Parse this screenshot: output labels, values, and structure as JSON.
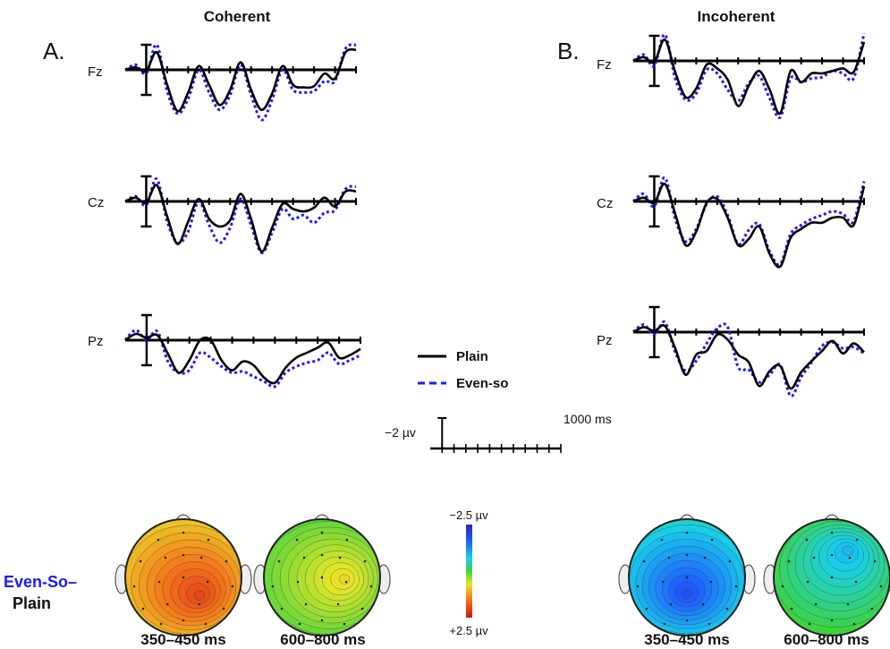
{
  "colors": {
    "plain": "#000000",
    "even_so": "#1a1aff",
    "axis": "#000000"
  },
  "panels": [
    {
      "id": "A",
      "letter": "A.",
      "title": "Coherent"
    },
    {
      "id": "B",
      "letter": "B.",
      "title": "Incoherent"
    }
  ],
  "electrodes": [
    "Fz",
    "Cz",
    "Pz"
  ],
  "legend": {
    "plain": "Plain",
    "even_so": "Even-so"
  },
  "scale_bar": {
    "amplitude": "−2 µv",
    "time": "1000 ms"
  },
  "difference_label": {
    "line1": "Even-So–",
    "line2": "Plain"
  },
  "colorbar": {
    "top": "−2.5 µv",
    "bottom": "+2.5 µv"
  },
  "time_windows": [
    "350–450 ms",
    "600–800 ms",
    "350–450 ms",
    "600–800 ms"
  ],
  "topomap_icons": [
    "head-topomap-icon",
    "head-topomap-icon",
    "head-topomap-icon",
    "head-topomap-icon"
  ],
  "chart_data": {
    "type": "line",
    "axis": {
      "x_range_ms": [
        -100,
        1000
      ],
      "x_tick_step_ms": 100,
      "y_scale_note": "negative up",
      "y_units": "µv"
    },
    "x_ms": [
      -100,
      -50,
      0,
      50,
      100,
      150,
      200,
      250,
      300,
      350,
      400,
      450,
      500,
      550,
      600,
      650,
      700,
      750,
      800,
      850,
      900,
      950,
      1000
    ],
    "waves": {
      "coherent": {
        "Fz": {
          "plain": [
            0,
            0.2,
            -0.1,
            1.4,
            -1.2,
            -3.3,
            -1.8,
            0.3,
            -1.2,
            -2.8,
            -1.6,
            0.6,
            -1.6,
            -3.2,
            -1.9,
            0.3,
            -1.2,
            -1.4,
            -1.3,
            -0.3,
            -0.7,
            1.4,
            1.6
          ],
          "even_so": [
            0,
            0.4,
            -0.3,
            2.0,
            -1.7,
            -3.5,
            -2.3,
            0.0,
            -1.8,
            -3.2,
            -2.0,
            0.4,
            -2.0,
            -4.0,
            -2.4,
            0.0,
            -1.6,
            -1.8,
            -1.7,
            -0.9,
            -0.9,
            1.7,
            2.0
          ]
        },
        "Cz": {
          "plain": [
            0,
            0.3,
            -0.1,
            1.3,
            -1.2,
            -3.4,
            -1.6,
            0.2,
            -1.4,
            -2.0,
            -1.5,
            0.6,
            -1.4,
            -4.0,
            -2.1,
            -0.2,
            -0.6,
            -0.8,
            -0.5,
            0.3,
            -0.4,
            0.8,
            0.8
          ],
          "even_so": [
            0,
            0.4,
            -0.3,
            1.8,
            -1.6,
            -3.3,
            -2.4,
            0.0,
            -1.9,
            -3.3,
            -2.1,
            0.2,
            -1.9,
            -4.1,
            -2.5,
            -0.6,
            -1.4,
            -1.1,
            -1.7,
            -0.9,
            -0.7,
            1.0,
            1.2
          ]
        },
        "Pz": {
          "plain": [
            0,
            0.5,
            0.2,
            0.4,
            -1.1,
            -2.6,
            -1.6,
            0.0,
            0.0,
            -1.6,
            -2.4,
            -1.7,
            -2.0,
            -3.0,
            -3.4,
            -2.2,
            -1.4,
            -1.0,
            -0.6,
            -0.2,
            -1.4,
            -1.2,
            -0.7
          ],
          "even_so": [
            0,
            0.8,
            0.0,
            0.7,
            -1.7,
            -2.6,
            -2.4,
            -1.0,
            -1.4,
            -2.1,
            -2.6,
            -2.5,
            -2.9,
            -3.3,
            -3.7,
            -2.6,
            -2.1,
            -1.8,
            -1.6,
            -1.0,
            -1.9,
            -1.6,
            -1.2
          ]
        }
      },
      "incoherent": {
        "Fz": {
          "plain": [
            0,
            0.3,
            -0.1,
            1.7,
            -0.9,
            -2.9,
            -2.2,
            -0.3,
            -0.6,
            -1.5,
            -3.6,
            -2.0,
            -0.8,
            -2.3,
            -4.2,
            -0.8,
            -1.7,
            -1.0,
            -1.0,
            -0.8,
            -0.6,
            -0.9,
            1.5
          ],
          "even_so": [
            0,
            0.5,
            -0.4,
            2.1,
            -1.4,
            -3.1,
            -2.6,
            -0.7,
            -1.0,
            -2.3,
            -3.2,
            -1.8,
            -1.2,
            -3.0,
            -4.5,
            -1.4,
            -1.7,
            -1.4,
            -1.3,
            -0.8,
            -1.0,
            -1.4,
            2.2
          ]
        },
        "Cz": {
          "plain": [
            0,
            0.3,
            -0.1,
            1.4,
            -1.0,
            -3.5,
            -2.4,
            -0.1,
            0.2,
            -1.3,
            -3.5,
            -3.0,
            -2.0,
            -4.2,
            -5.2,
            -2.9,
            -2.2,
            -1.7,
            -1.7,
            -1.3,
            -1.3,
            -1.9,
            1.2
          ],
          "even_so": [
            0,
            0.6,
            -0.4,
            1.9,
            -1.4,
            -3.2,
            -2.2,
            -0.2,
            0.4,
            -1.1,
            -3.4,
            -2.3,
            -1.8,
            -4.0,
            -5.0,
            -2.6,
            -1.9,
            -1.4,
            -1.1,
            -0.8,
            -1.0,
            -1.6,
            1.6
          ]
        },
        "Pz": {
          "plain": [
            0,
            0.4,
            0.1,
            0.5,
            -1.3,
            -3.4,
            -1.8,
            -1.5,
            -0.2,
            -0.6,
            -1.8,
            -2.4,
            -4.3,
            -3.1,
            -2.7,
            -4.5,
            -3.2,
            -2.3,
            -1.5,
            -0.7,
            -1.7,
            -0.9,
            -1.6
          ],
          "even_so": [
            0,
            0.6,
            -0.2,
            0.8,
            -1.6,
            -3.1,
            -2.3,
            -0.9,
            0.3,
            0.4,
            -2.8,
            -3.0,
            -4.0,
            -3.4,
            -2.6,
            -5.1,
            -3.6,
            -2.4,
            -1.1,
            -0.8,
            -1.3,
            -1.2,
            -1.7
          ]
        }
      }
    },
    "topomaps": [
      {
        "panel": "coherent",
        "window": "350–450 ms",
        "mean_uv": 1.3,
        "center_uv": 2.0,
        "center_pos": "central-posterior right"
      },
      {
        "panel": "coherent",
        "window": "600–800 ms",
        "mean_uv": 0.35,
        "center_uv": 0.8,
        "center_pos": "right central"
      },
      {
        "panel": "incoherent",
        "window": "350–450 ms",
        "mean_uv": -1.0,
        "center_uv": -1.8,
        "center_pos": "central-posterior"
      },
      {
        "panel": "incoherent",
        "window": "600–800 ms",
        "mean_uv": -0.3,
        "center_uv": -0.9,
        "center_pos": "frontal right"
      }
    ],
    "colorbar_range_uv": [
      -2.5,
      2.5
    ]
  }
}
